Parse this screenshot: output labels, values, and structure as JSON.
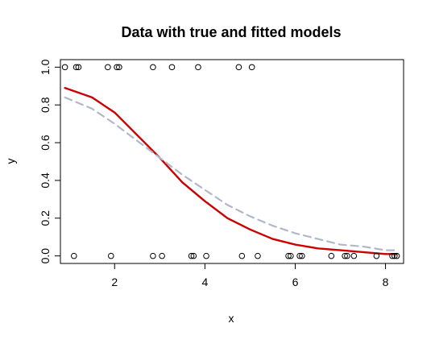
{
  "chart_data": {
    "type": "scatter",
    "title": "Data with true and fitted models",
    "xlabel": "x",
    "ylabel": "y",
    "xlim": [
      0.8,
      8.4
    ],
    "ylim": [
      -0.04,
      1.04
    ],
    "x_ticks": [
      2,
      4,
      6,
      8
    ],
    "x_tick_labels": [
      "2",
      "4",
      "6",
      "8"
    ],
    "y_ticks": [
      0.0,
      0.2,
      0.4,
      0.6,
      0.8,
      1.0
    ],
    "y_tick_labels": [
      "0.0",
      "0.2",
      "0.4",
      "0.6",
      "0.8",
      "1.0"
    ],
    "grid": false,
    "legend": "none",
    "points": [
      {
        "x": 0.9,
        "y": 1
      },
      {
        "x": 1.15,
        "y": 1
      },
      {
        "x": 1.2,
        "y": 1
      },
      {
        "x": 1.85,
        "y": 1
      },
      {
        "x": 2.05,
        "y": 1
      },
      {
        "x": 2.1,
        "y": 1
      },
      {
        "x": 2.85,
        "y": 1
      },
      {
        "x": 3.27,
        "y": 1
      },
      {
        "x": 3.85,
        "y": 1
      },
      {
        "x": 4.75,
        "y": 1
      },
      {
        "x": 5.04,
        "y": 1
      },
      {
        "x": 1.1,
        "y": 0
      },
      {
        "x": 1.92,
        "y": 0
      },
      {
        "x": 2.85,
        "y": 0
      },
      {
        "x": 3.05,
        "y": 0
      },
      {
        "x": 3.7,
        "y": 0
      },
      {
        "x": 3.75,
        "y": 0
      },
      {
        "x": 4.03,
        "y": 0
      },
      {
        "x": 4.82,
        "y": 0
      },
      {
        "x": 5.17,
        "y": 0
      },
      {
        "x": 5.85,
        "y": 0
      },
      {
        "x": 5.9,
        "y": 0
      },
      {
        "x": 6.1,
        "y": 0
      },
      {
        "x": 6.15,
        "y": 0
      },
      {
        "x": 6.8,
        "y": 0
      },
      {
        "x": 7.1,
        "y": 0
      },
      {
        "x": 7.15,
        "y": 0
      },
      {
        "x": 7.3,
        "y": 0
      },
      {
        "x": 7.8,
        "y": 0
      },
      {
        "x": 8.15,
        "y": 0
      },
      {
        "x": 8.2,
        "y": 0
      },
      {
        "x": 8.25,
        "y": 0
      }
    ],
    "series": [
      {
        "style": "solid",
        "color": "#cc0000",
        "x": [
          0.9,
          1.5,
          2.0,
          2.5,
          3.0,
          3.5,
          4.0,
          4.5,
          5.0,
          5.5,
          6.0,
          6.5,
          7.0,
          7.5,
          8.0,
          8.25
        ],
        "y": [
          0.89,
          0.84,
          0.76,
          0.64,
          0.52,
          0.39,
          0.29,
          0.2,
          0.14,
          0.09,
          0.06,
          0.04,
          0.03,
          0.02,
          0.01,
          0.01
        ]
      },
      {
        "style": "dashed",
        "color": "#b0b8c8",
        "x": [
          0.9,
          1.5,
          2.0,
          2.5,
          3.0,
          3.5,
          4.0,
          4.5,
          5.0,
          5.5,
          6.0,
          6.5,
          7.0,
          7.5,
          8.0,
          8.25
        ],
        "y": [
          0.84,
          0.78,
          0.7,
          0.61,
          0.52,
          0.43,
          0.35,
          0.27,
          0.21,
          0.16,
          0.12,
          0.09,
          0.06,
          0.05,
          0.03,
          0.03
        ]
      }
    ]
  }
}
